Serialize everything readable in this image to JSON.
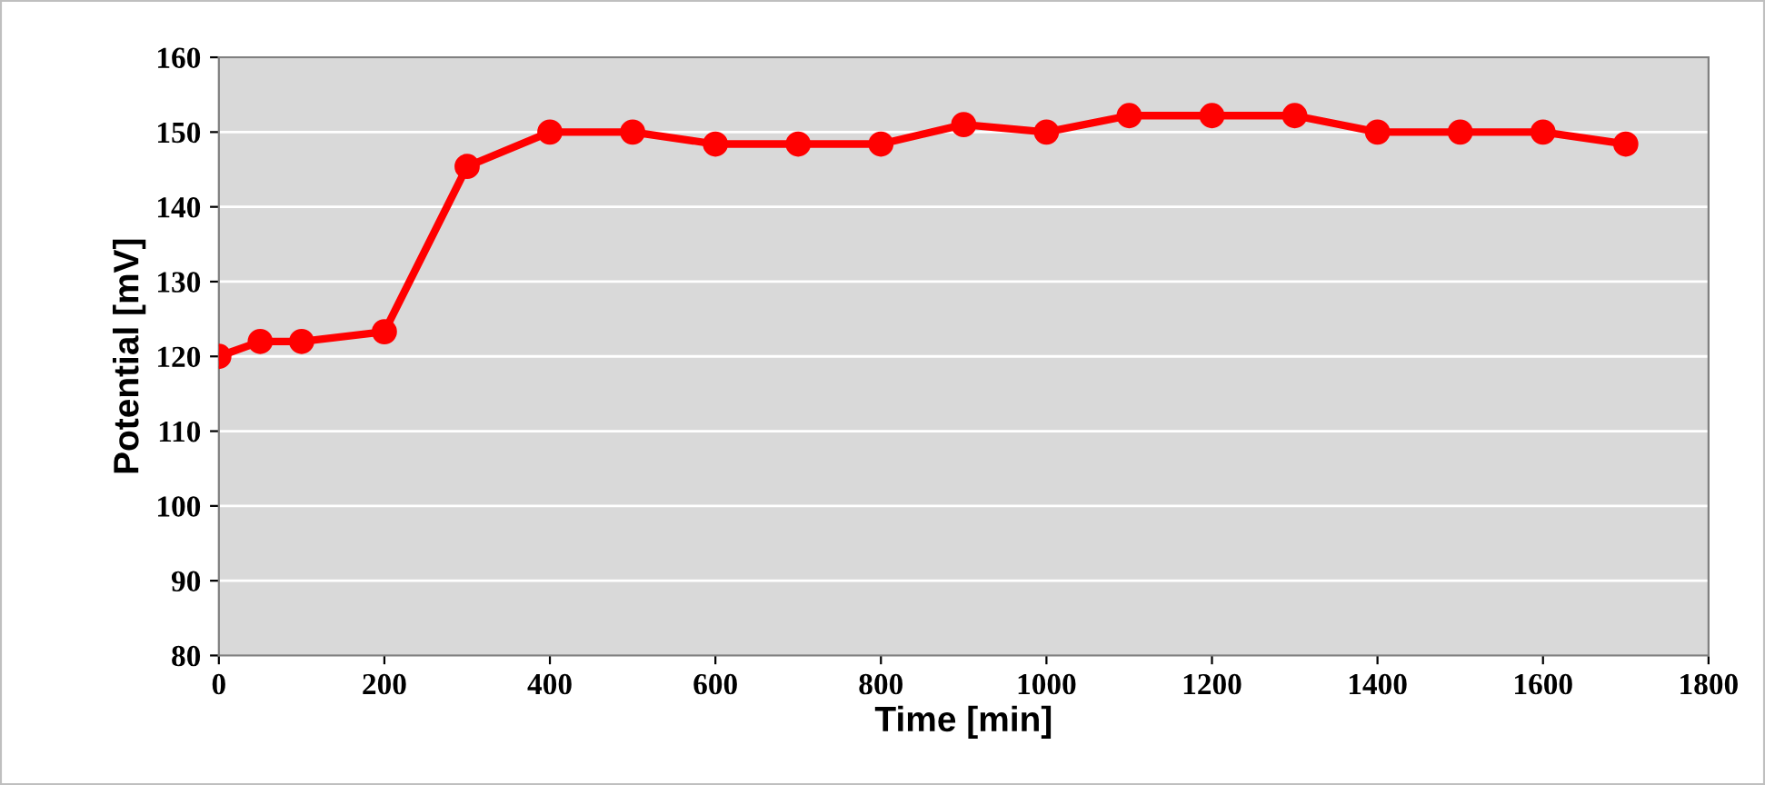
{
  "chart_data": {
    "type": "line",
    "xlabel": "Time [min]",
    "ylabel": "Potential [mV]",
    "x": [
      0,
      50,
      100,
      200,
      300,
      400,
      500,
      600,
      700,
      800,
      900,
      1000,
      1100,
      1200,
      1300,
      1400,
      1500,
      1600,
      1700
    ],
    "series": [
      {
        "color": "#ff0000",
        "values": [
          120,
          122,
          122,
          123.3,
          145.4,
          150,
          150,
          148.4,
          148.4,
          148.4,
          151,
          150,
          152.2,
          152.2,
          152.2,
          150,
          150,
          150,
          148.4
        ]
      }
    ],
    "xlim": [
      0,
      1800
    ],
    "xticks": [
      0,
      200,
      400,
      600,
      800,
      1000,
      1200,
      1400,
      1600,
      1800
    ],
    "ylim": [
      80,
      160
    ],
    "yticks": [
      80,
      90,
      100,
      110,
      120,
      130,
      140,
      150,
      160
    ],
    "grid": "y",
    "marker": "circle",
    "line_style": "solid"
  }
}
